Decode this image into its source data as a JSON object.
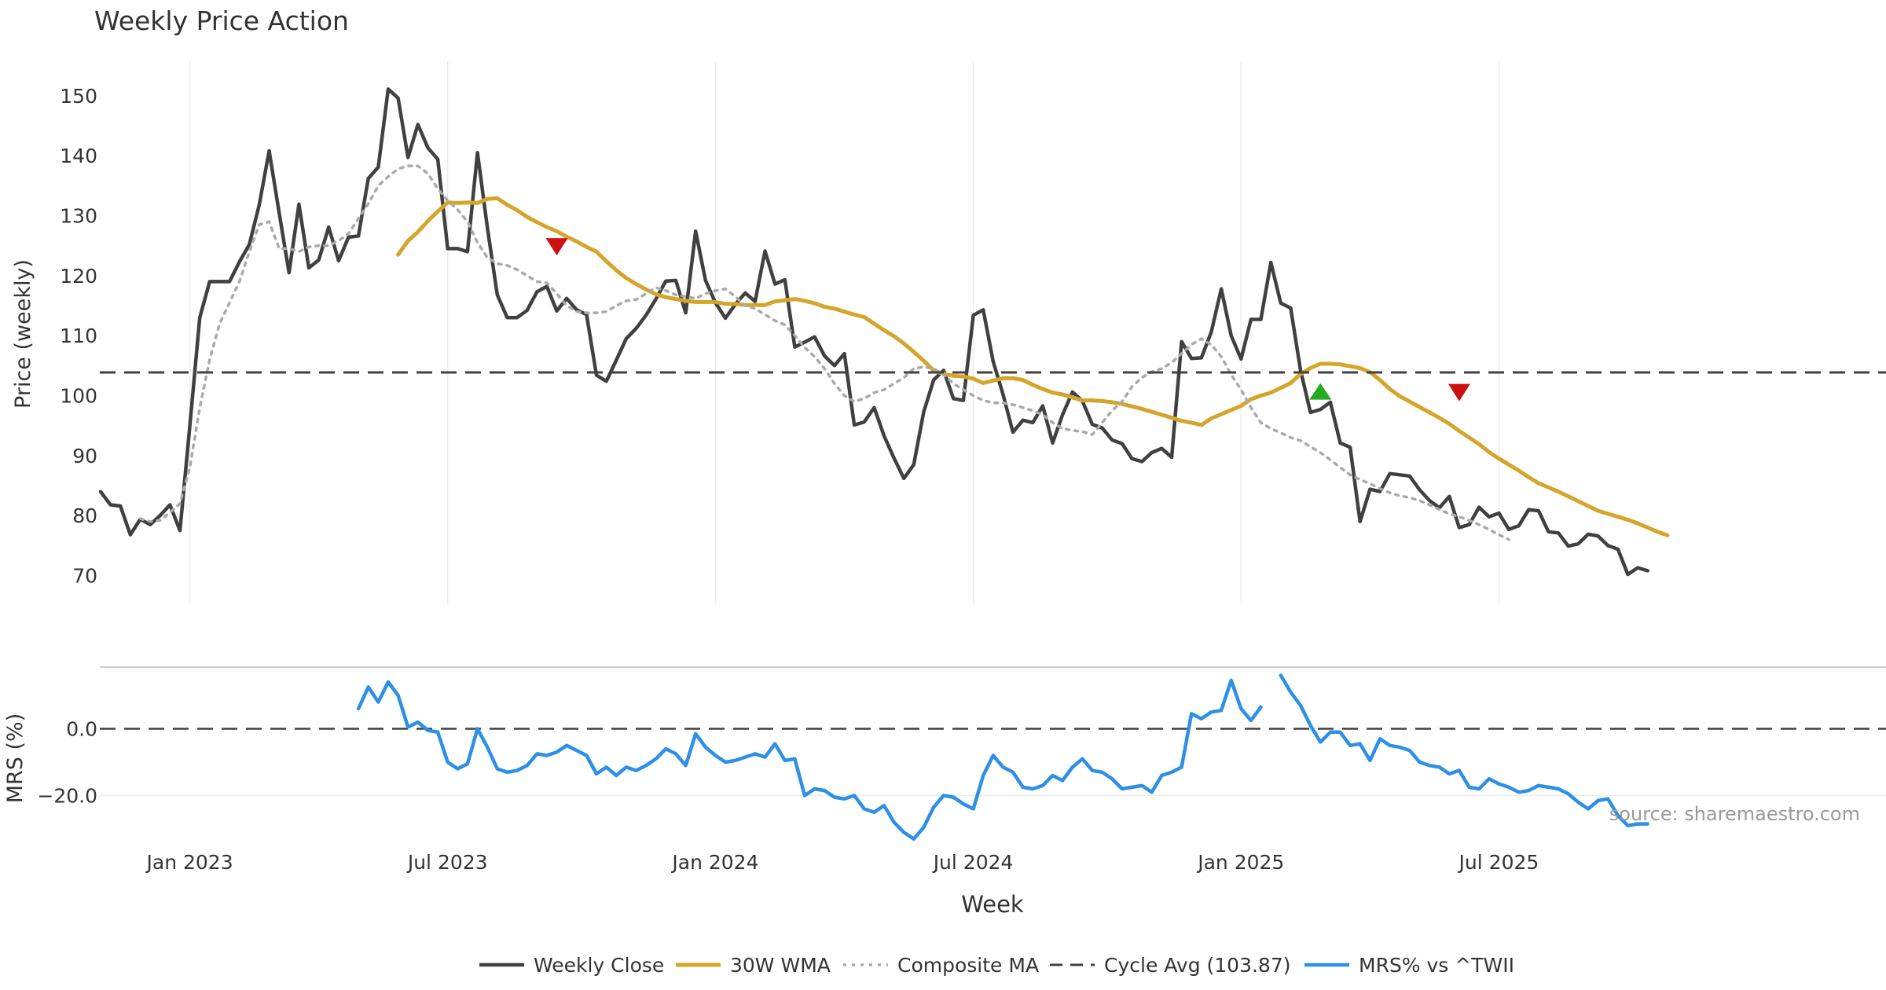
{
  "chart_data": [
    {
      "panel": "price",
      "type": "line",
      "title": "Weekly Price Action",
      "ylabel": "Price (weekly)",
      "xlabel": "Week",
      "ylim": [
        64,
        155
      ],
      "yticks": [
        70,
        80,
        90,
        100,
        110,
        120,
        130,
        140,
        150
      ],
      "grid": "vertical",
      "series": [
        {
          "name": "Weekly Close",
          "color": "#404040",
          "style": "solid",
          "values": [
            84.0,
            81.8,
            81.6,
            76.8,
            79.4,
            78.5,
            80.0,
            81.8,
            77.5,
            95.0,
            113.0,
            119.0,
            119.0,
            119.0,
            122.3,
            125.2,
            131.8,
            140.8,
            130.5,
            120.5,
            131.9,
            121.3,
            122.6,
            128.1,
            122.5,
            126.4,
            126.6,
            136.2,
            138.1,
            151.1,
            149.6,
            139.7,
            145.2,
            141.3,
            139.4,
            124.5,
            124.5,
            124.0,
            140.5,
            128.0,
            116.8,
            113.0,
            113.0,
            114.2,
            117.3,
            118.2,
            114.1,
            116.2,
            114.3,
            113.5,
            103.4,
            102.4,
            105.9,
            109.5,
            111.2,
            113.4,
            116.1,
            119.1,
            119.2,
            113.8,
            127.4,
            119.2,
            115.5,
            112.9,
            115.2,
            117.1,
            115.7,
            124.1,
            118.6,
            119.3,
            108.1,
            108.9,
            109.8,
            106.6,
            105.0,
            107.0,
            95.1,
            95.6,
            98.0,
            93.3,
            89.6,
            86.2,
            88.5,
            97.3,
            102.6,
            104.2,
            99.5,
            99.2,
            113.4,
            114.3,
            105.7,
            100.2,
            93.9,
            95.9,
            95.5,
            98.3,
            92.1,
            96.8,
            100.6,
            99.1,
            95.2,
            94.6,
            92.6,
            92.0,
            89.5,
            89.0,
            90.5,
            91.2,
            89.7,
            109.0,
            106.2,
            106.3,
            110.6,
            117.8,
            110.0,
            106.1,
            112.7,
            112.7,
            122.2,
            115.4,
            114.6,
            104.2,
            97.2,
            97.7,
            98.9,
            92.1,
            91.4,
            79.0,
            84.4,
            84.0,
            87.0,
            86.8,
            86.6,
            84.3,
            82.5,
            81.3,
            83.2,
            78.0,
            78.5,
            81.4,
            79.8,
            80.4,
            77.7,
            78.3,
            81.0,
            80.8,
            77.3,
            77.1,
            74.9,
            75.3,
            76.9,
            76.6,
            75.0,
            74.4,
            70.2,
            71.3,
            70.8
          ]
        },
        {
          "name": "30W WMA",
          "color": "#d4a52a",
          "style": "solid",
          "start_index": 30,
          "values": [
            123.5,
            125.8,
            127.3,
            129.1,
            130.7,
            132.2,
            132.1,
            132.2,
            132.1,
            132.8,
            132.9,
            131.8,
            130.9,
            129.8,
            128.9,
            128.1,
            127.4,
            126.5,
            125.7,
            124.8,
            124.0,
            122.4,
            120.9,
            119.6,
            118.6,
            117.7,
            116.9,
            116.4,
            116.1,
            115.8,
            115.6,
            115.6,
            115.6,
            115.3,
            115.3,
            115.1,
            115.1,
            115.1,
            115.7,
            115.9,
            116.1,
            115.8,
            115.4,
            114.8,
            114.5,
            114.0,
            113.5,
            113.1,
            112.0,
            110.9,
            109.9,
            108.7,
            107.3,
            105.8,
            104.2,
            103.6,
            103.3,
            103.2,
            102.8,
            102.1,
            102.5,
            102.9,
            102.9,
            102.6,
            101.8,
            101.1,
            100.5,
            100.2,
            99.7,
            99.2,
            99.2,
            99.1,
            98.9,
            98.6,
            98.2,
            97.8,
            97.3,
            96.8,
            96.3,
            95.8,
            95.5,
            95.1,
            96.2,
            96.9,
            97.6,
            98.3,
            99.4,
            100.0,
            100.5,
            101.3,
            102.1,
            103.6,
            104.6,
            105.3,
            105.3,
            105.2,
            104.9,
            104.6,
            103.9,
            102.6,
            101.1,
            99.9,
            99.0,
            98.1,
            97.2,
            96.3,
            95.3,
            94.1,
            93.0,
            91.9,
            90.6,
            89.5,
            88.5,
            87.5,
            86.4,
            85.4,
            84.7,
            84.0,
            83.2,
            82.4,
            81.6,
            80.8,
            80.3,
            79.8,
            79.3,
            78.7,
            78.0,
            77.3,
            76.7
          ]
        },
        {
          "name": "Composite MA",
          "color": "#aaaaaa",
          "style": "dotted",
          "start_index": 4,
          "values": [
            79.5,
            79.0,
            79.2,
            80.5,
            82.0,
            88.0,
            98.0,
            106.0,
            112.0,
            115.5,
            119.0,
            124.0,
            128.5,
            129.0,
            124.5,
            124.5,
            124.0,
            124.8,
            125.0,
            125.0,
            125.8,
            127.0,
            129.5,
            132.0,
            135.0,
            136.5,
            137.8,
            138.3,
            138.3,
            137.0,
            134.5,
            132.5,
            131.0,
            129.0,
            125.5,
            123.0,
            122.0,
            121.7,
            121.0,
            120.0,
            119.0,
            118.8,
            117.0,
            115.0,
            114.0,
            113.8,
            113.8,
            114.0,
            115.0,
            115.8,
            116.0,
            117.0,
            118.0,
            117.5,
            116.8,
            116.5,
            116.2,
            117.0,
            117.5,
            117.8,
            116.5,
            115.0,
            114.5,
            113.5,
            112.5,
            111.8,
            110.0,
            108.0,
            106.5,
            104.5,
            102.0,
            100.0,
            99.0,
            99.5,
            100.5,
            101.0,
            102.0,
            103.0,
            104.5,
            104.8,
            104.5,
            103.5,
            102.0,
            101.0,
            100.0,
            99.2,
            98.8,
            98.8,
            98.5,
            98.0,
            97.5,
            96.8,
            95.5,
            94.5,
            94.2,
            94.0,
            93.5,
            95.5,
            97.5,
            99.0,
            101.5,
            103.0,
            104.0,
            104.5,
            105.5,
            107.0,
            108.5,
            109.5,
            108.5,
            106.5,
            103.5,
            101.0,
            98.0,
            95.5,
            94.5,
            93.8,
            93.0,
            92.5,
            91.5,
            90.5,
            89.3,
            88.0,
            86.8,
            86.0,
            85.3,
            84.5,
            83.8,
            83.3,
            83.0,
            82.5,
            81.8,
            81.0,
            80.3,
            79.8,
            79.2,
            78.5,
            77.7,
            76.8,
            76.0
          ]
        },
        {
          "name": "Cycle Avg (103.87)",
          "color": "#404040",
          "style": "dashed",
          "value": 103.87
        }
      ],
      "signals": [
        {
          "type": "sell",
          "week": 46,
          "price": 124.8,
          "color": "#cc1111"
        },
        {
          "type": "buy",
          "week": 123,
          "price": 100.5,
          "color": "#22aa22"
        },
        {
          "type": "sell",
          "week": 137,
          "price": 100.5,
          "color": "#cc1111"
        }
      ]
    },
    {
      "panel": "mrs",
      "type": "line",
      "ylabel": "MRS (%)",
      "xlabel": "Week",
      "ylim": [
        -34,
        19
      ],
      "yticks": [
        0.0,
        -20.0
      ],
      "ytick_labels": [
        "0.0",
        "−20.0"
      ],
      "reference_line": 0.0,
      "x_tick_labels": [
        "Jan 2023",
        "Jul 2023",
        "Jan 2024",
        "Jul 2024",
        "Jan 2025",
        "Jul 2025"
      ],
      "x_tick_weeks": [
        9,
        35,
        62,
        88,
        115,
        141
      ],
      "annotation": "source: sharemaestro.com",
      "series": [
        {
          "name": "MRS% vs ^TWII",
          "color": "#2e8fe6",
          "style": "solid",
          "segments": [
            {
              "start_index": 26,
              "values": [
                6.0,
                12.5,
                8.0,
                14.0,
                10.0,
                0.5,
                2.0,
                -0.5,
                -1.0,
                -10.0,
                -12.0,
                -10.5,
                0.0,
                -5.5,
                -12.0,
                -13.0,
                -12.5,
                -11.0,
                -7.5,
                -8.0,
                -7.0,
                -5.0,
                -6.5,
                -8.0,
                -13.5,
                -11.5,
                -14.0,
                -11.5,
                -12.5,
                -11.0,
                -9.0,
                -6.0,
                -7.5,
                -11.0,
                -1.5,
                -5.5,
                -8.0,
                -10.0,
                -9.5,
                -8.5,
                -7.5,
                -8.5,
                -4.5,
                -9.5,
                -9.0,
                -20.0,
                -18.0,
                -18.5,
                -20.5,
                -21.0,
                -20.0,
                -24.0,
                -25.0,
                -23.0,
                -28.0,
                -31.0,
                -33.0,
                -29.5,
                -23.5,
                -20.0,
                -20.5,
                -22.5,
                -24.0,
                -14.0,
                -8.0,
                -11.5,
                -13.0,
                -17.5,
                -18.0,
                -17.0,
                -14.0,
                -15.5,
                -11.5,
                -9.0,
                -12.5,
                -13.0,
                -15.0,
                -18.0,
                -17.5,
                -17.0,
                -19.0,
                -14.0,
                -13.0,
                -11.5,
                4.5,
                3.0,
                5.0,
                5.5,
                14.5,
                6.0,
                2.5,
                6.5
              ]
            },
            {
              "start_index": 119,
              "values": [
                16.0,
                11.0,
                7.0,
                1.0,
                -4.0,
                -1.0,
                -1.0,
                -5.0,
                -4.5,
                -9.5,
                -3.0,
                -5.0,
                -5.5,
                -6.5,
                -10.0,
                -11.0,
                -11.5,
                -13.5,
                -12.5,
                -17.5,
                -18.0,
                -15.0,
                -16.5,
                -17.5,
                -19.0,
                -18.5,
                -17.0,
                -17.5,
                -18.0,
                -19.5,
                -22.0,
                -24.0,
                -21.5,
                -21.0,
                -26.0,
                -29.0,
                -28.5,
                -28.5
              ]
            }
          ]
        }
      ]
    }
  ]
}
